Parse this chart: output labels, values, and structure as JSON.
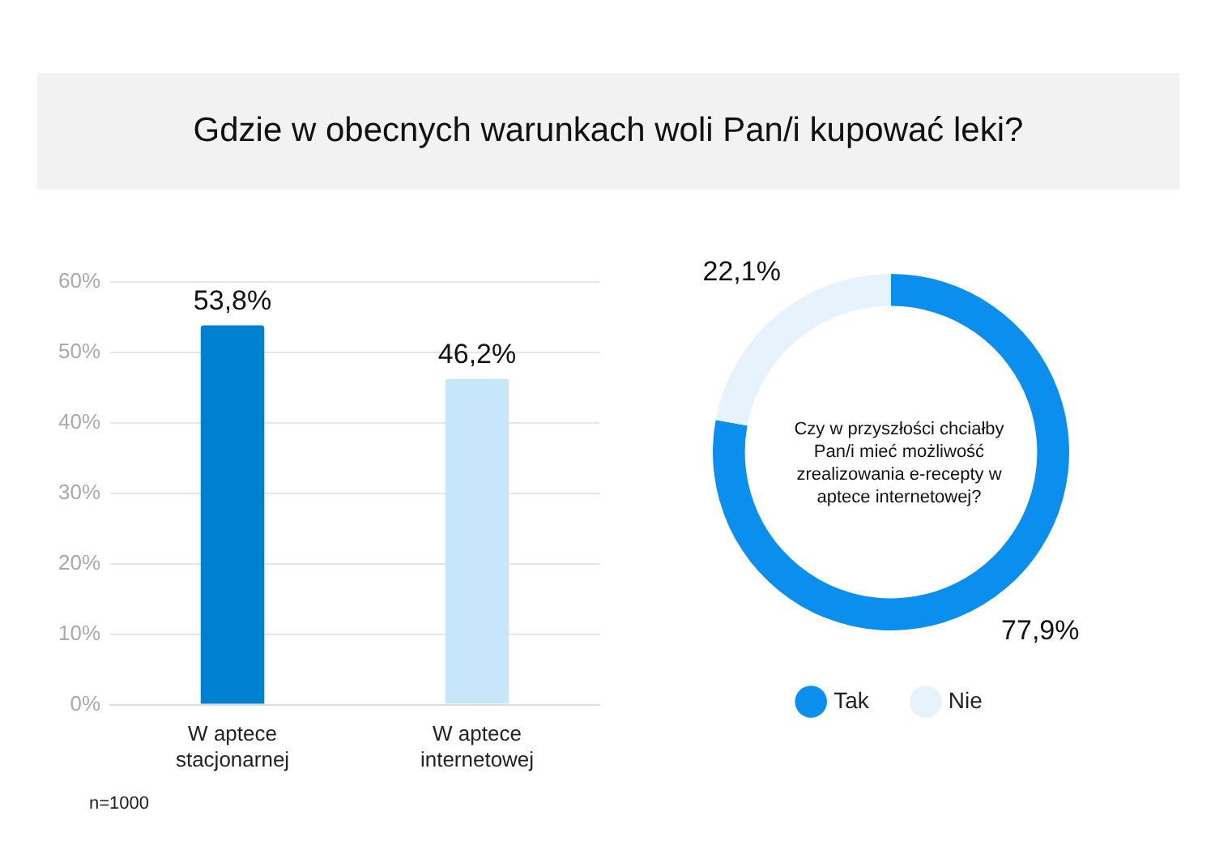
{
  "chart_data": [
    {
      "type": "bar",
      "title": "Gdzie w obecnych warunkach woli Pan/i kupować leki?",
      "categories": [
        "W aptece stacjonarnej",
        "W aptece internetowej"
      ],
      "values": [
        53.8,
        46.2
      ],
      "colors": [
        "#0080d0",
        "#c8e6fb"
      ],
      "value_labels": [
        "53,8%",
        "46,2%"
      ],
      "ylim": [
        0,
        60
      ],
      "yticks": [
        {
          "value": 0,
          "label": "0%"
        },
        {
          "value": 10,
          "label": "10%"
        },
        {
          "value": 20,
          "label": "20%"
        },
        {
          "value": 30,
          "label": "30%"
        },
        {
          "value": 40,
          "label": "40%"
        },
        {
          "value": 50,
          "label": "50%"
        },
        {
          "value": 60,
          "label": "60%"
        }
      ],
      "grid": "y",
      "annotations": [
        "n=1000"
      ]
    },
    {
      "type": "donut",
      "title": "Czy w przyszłości chciałby Pan/i mieć możliwość zrealizowania e-recepty w aptece internetowej?",
      "categories": [
        "Tak",
        "Nie"
      ],
      "values": [
        77.9,
        22.1
      ],
      "colors": [
        "#0a8fef",
        "#e6f3fc"
      ],
      "value_labels": [
        "77,9%",
        "22,1%"
      ],
      "legend": "bottom"
    }
  ]
}
